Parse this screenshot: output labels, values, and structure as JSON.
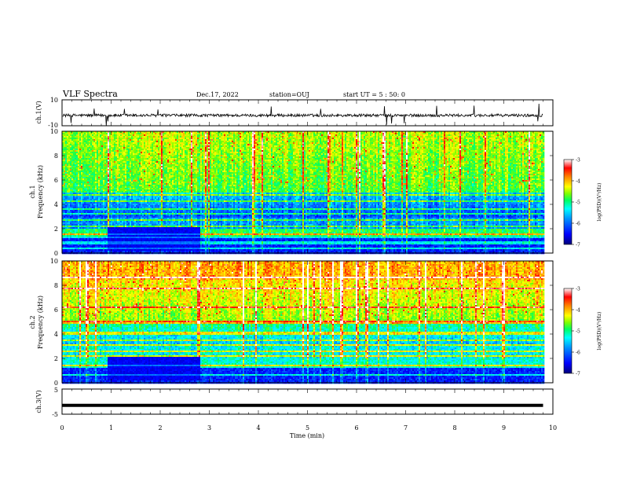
{
  "header": {
    "title": "VLF Spectra",
    "date": "Dec.17, 2022",
    "station": "station=OUJ",
    "start_ut": "start  UT =  5 : 50: 0"
  },
  "chart_data": [
    {
      "type": "line",
      "name": "ch1-waveform",
      "ylabel": "ch.1(V)",
      "ylim": [
        -10,
        10
      ],
      "yticks": [
        "10",
        "-10"
      ],
      "xlim": [
        0,
        10
      ],
      "description_level": 0
    },
    {
      "type": "heatmap",
      "name": "ch1-spectrogram",
      "ylabel": "ch.1\nFrequency (kHz)",
      "ylabel_line1": "ch.1",
      "ylabel_line2": "Frequency (kHz)",
      "ylim": [
        0,
        10
      ],
      "yticks": [
        "0",
        "2",
        "4",
        "6",
        "8",
        "10"
      ],
      "xlim": [
        0,
        9.8
      ],
      "colorbar": {
        "range": [
          -7,
          -3
        ],
        "ticks": [
          "-3",
          "-4",
          "-5",
          "-6",
          "-7"
        ],
        "label": "log(PSD)(V²/Hz)"
      }
    },
    {
      "type": "heatmap",
      "name": "ch2-spectrogram",
      "ylabel_line1": "ch.2",
      "ylabel_line2": "Frequency (kHz)",
      "ylim": [
        0,
        10
      ],
      "yticks": [
        "0",
        "2",
        "4",
        "6",
        "8",
        "10"
      ],
      "xlim": [
        0,
        9.8
      ],
      "colorbar": {
        "range": [
          -7,
          -3
        ],
        "ticks": [
          "-3",
          "-4",
          "-5",
          "-6",
          "-7"
        ],
        "label": "log(PSD)(V²/Hz)"
      }
    },
    {
      "type": "line",
      "name": "ch3-waveform",
      "ylabel": "ch.3(V)",
      "ylim": [
        -5,
        5
      ],
      "yticks": [
        "5",
        "-5"
      ],
      "level": -1.5,
      "xlim": [
        0,
        10
      ]
    }
  ],
  "xaxis": {
    "label": "Time  (min)",
    "ticks": [
      "0",
      "1",
      "2",
      "3",
      "4",
      "5",
      "6",
      "7",
      "8",
      "9",
      "10"
    ],
    "range": [
      0,
      10
    ]
  },
  "colors": {
    "palette": [
      "#00007a",
      "#0000ff",
      "#0090ff",
      "#00ffff",
      "#00ff60",
      "#80ff00",
      "#ffff00",
      "#ff8000",
      "#ff0000",
      "#ffffff"
    ]
  }
}
